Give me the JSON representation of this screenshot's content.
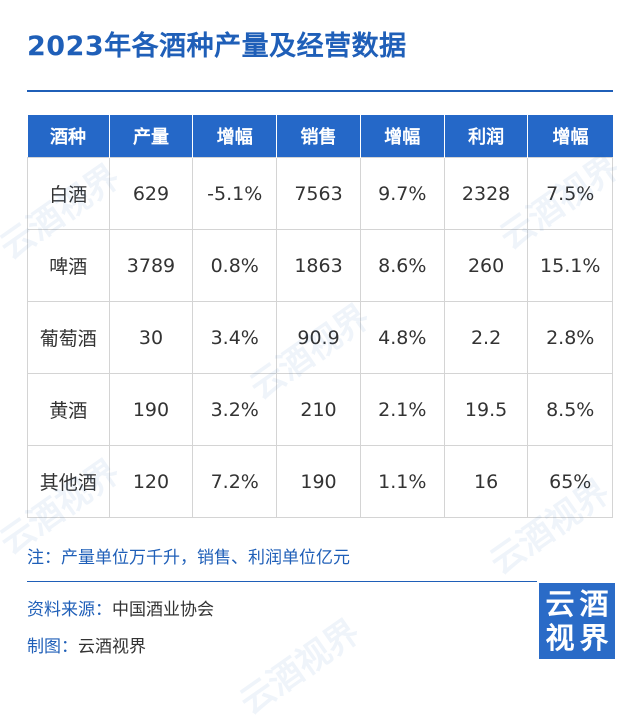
{
  "title": "2023年各酒种产量及经营数据",
  "table": {
    "headers": [
      "酒种",
      "产量",
      "增幅",
      "销售",
      "增幅",
      "利润",
      "增幅"
    ],
    "rows": [
      [
        "白酒",
        "629",
        "-5.1%",
        "7563",
        "9.7%",
        "2328",
        "7.5%"
      ],
      [
        "啤酒",
        "3789",
        "0.8%",
        "1863",
        "8.6%",
        "260",
        "15.1%"
      ],
      [
        "葡萄酒",
        "30",
        "3.4%",
        "90.9",
        "4.8%",
        "2.2",
        "2.8%"
      ],
      [
        "黄酒",
        "190",
        "3.2%",
        "210",
        "2.1%",
        "19.5",
        "8.5%"
      ],
      [
        "其他酒",
        "120",
        "7.2%",
        "190",
        "1.1%",
        "16",
        "65%"
      ]
    ]
  },
  "note": "注：产量单位万千升，销售、利润单位亿元",
  "source": {
    "label": "资料来源：",
    "value": "中国酒业协会"
  },
  "maker": {
    "label": "制图：",
    "value": "云酒视界"
  },
  "logo": {
    "chars": [
      "云",
      "酒",
      "视",
      "界"
    ]
  },
  "watermark_text": "云酒视界",
  "colors": {
    "brand_blue": "#1f5fb8",
    "header_bg": "#2568c8",
    "logo_bg": "#2a6bc7"
  }
}
